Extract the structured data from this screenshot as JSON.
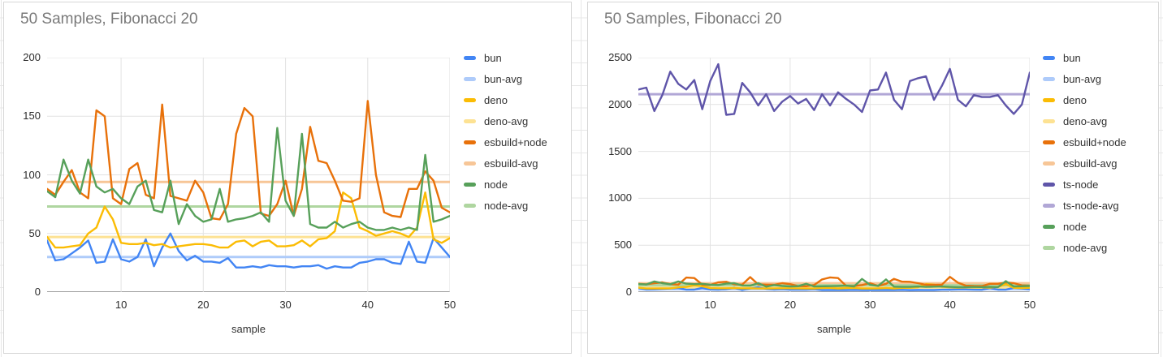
{
  "page": {
    "background_color": "#ffffff",
    "spreadsheet_grid_color": "#e7e7e7",
    "card_border_color": "#d7d7d7"
  },
  "style": {
    "title_color": "#7a7a7a",
    "axis_tick_color": "#2b2b2b",
    "axis_title_color": "#333333",
    "gridline_color": "#e2e2e2",
    "zero_axis_color": "#9c9c9c",
    "legend_text_color": "#333333"
  },
  "chart_data": [
    {
      "type": "line",
      "title": "50 Samples, Fibonacci 20",
      "xlabel": "sample",
      "ylabel": "",
      "xlim": [
        1,
        50
      ],
      "ylim": [
        0,
        200
      ],
      "x_ticks": [
        10,
        20,
        30,
        40,
        50
      ],
      "y_ticks": [
        0,
        50,
        100,
        150,
        200
      ],
      "grid": true,
      "legend_position": "right",
      "series": [
        {
          "name": "bun",
          "color": "#4285F4",
          "values": [
            44,
            27,
            28,
            33,
            38,
            44,
            25,
            26,
            45,
            28,
            26,
            30,
            45,
            22,
            38,
            50,
            35,
            27,
            31,
            26,
            26,
            25,
            29,
            21,
            21,
            22,
            21,
            23,
            22,
            22,
            21,
            22,
            22,
            23,
            20,
            22,
            21,
            21,
            25,
            26,
            28,
            28,
            25,
            24,
            43,
            26,
            25,
            46,
            38,
            30
          ]
        },
        {
          "name": "bun-avg",
          "color": "#AECBFA",
          "avg": 30
        },
        {
          "name": "deno",
          "color": "#FBBC04",
          "values": [
            47,
            38,
            38,
            39,
            40,
            50,
            55,
            73,
            62,
            42,
            41,
            41,
            42,
            40,
            41,
            38,
            39,
            40,
            41,
            41,
            40,
            38,
            38,
            43,
            44,
            39,
            43,
            44,
            39,
            39,
            40,
            44,
            39,
            45,
            46,
            52,
            85,
            80,
            55,
            52,
            48,
            50,
            52,
            50,
            47,
            55,
            85,
            45,
            42,
            46
          ]
        },
        {
          "name": "deno-avg",
          "color": "#FDE293",
          "avg": 47
        },
        {
          "name": "esbuild+node",
          "color": "#E8710A",
          "values": [
            88,
            83,
            94,
            104,
            85,
            80,
            155,
            150,
            80,
            75,
            105,
            110,
            83,
            80,
            160,
            82,
            80,
            78,
            95,
            85,
            63,
            62,
            75,
            135,
            157,
            150,
            67,
            65,
            75,
            95,
            65,
            88,
            141,
            112,
            110,
            95,
            78,
            77,
            80,
            163,
            100,
            68,
            65,
            64,
            88,
            88,
            103,
            95,
            72,
            68
          ]
        },
        {
          "name": "esbuild-avg",
          "color": "#F7C697",
          "avg": 94
        },
        {
          "name": "node",
          "color": "#57A05A",
          "values": [
            86,
            81,
            113,
            95,
            84,
            113,
            90,
            85,
            88,
            80,
            75,
            90,
            95,
            70,
            68,
            95,
            58,
            75,
            65,
            60,
            62,
            88,
            60,
            62,
            63,
            65,
            68,
            60,
            140,
            78,
            65,
            135,
            58,
            55,
            55,
            60,
            55,
            58,
            60,
            55,
            53,
            53,
            55,
            53,
            55,
            53,
            117,
            60,
            62,
            65
          ]
        },
        {
          "name": "node-avg",
          "color": "#AFD6A0",
          "avg": 73
        }
      ]
    },
    {
      "type": "line",
      "title": "50 Samples, Fibonacci 20",
      "xlabel": "sample",
      "ylabel": "",
      "xlim": [
        1,
        50
      ],
      "ylim": [
        0,
        2500
      ],
      "x_ticks": [
        10,
        20,
        30,
        40,
        50
      ],
      "y_ticks": [
        0,
        500,
        1000,
        1500,
        2000,
        2500
      ],
      "grid": true,
      "legend_position": "right",
      "series": [
        {
          "name": "bun",
          "color": "#4285F4",
          "values": [
            44,
            27,
            28,
            33,
            38,
            44,
            25,
            26,
            45,
            28,
            26,
            30,
            45,
            22,
            38,
            50,
            35,
            27,
            31,
            26,
            26,
            25,
            29,
            21,
            21,
            22,
            21,
            23,
            22,
            22,
            21,
            22,
            22,
            23,
            20,
            22,
            21,
            21,
            25,
            26,
            28,
            28,
            25,
            24,
            43,
            26,
            25,
            46,
            38,
            30
          ]
        },
        {
          "name": "bun-avg",
          "color": "#AECBFA",
          "avg": 30
        },
        {
          "name": "deno",
          "color": "#FBBC04",
          "values": [
            47,
            38,
            38,
            39,
            40,
            50,
            55,
            73,
            62,
            42,
            41,
            41,
            42,
            40,
            41,
            38,
            39,
            40,
            41,
            41,
            40,
            38,
            38,
            43,
            44,
            39,
            43,
            44,
            39,
            39,
            40,
            44,
            39,
            45,
            46,
            52,
            85,
            80,
            55,
            52,
            48,
            50,
            52,
            50,
            47,
            55,
            85,
            45,
            42,
            46
          ]
        },
        {
          "name": "deno-avg",
          "color": "#FDE293",
          "avg": 47
        },
        {
          "name": "esbuild+node",
          "color": "#E8710A",
          "values": [
            88,
            83,
            94,
            104,
            85,
            80,
            155,
            150,
            80,
            75,
            105,
            110,
            83,
            80,
            160,
            82,
            80,
            78,
            95,
            85,
            63,
            62,
            75,
            135,
            157,
            150,
            67,
            65,
            75,
            95,
            65,
            88,
            141,
            112,
            110,
            95,
            78,
            77,
            80,
            163,
            100,
            68,
            65,
            64,
            88,
            88,
            103,
            95,
            72,
            68
          ]
        },
        {
          "name": "esbuild-avg",
          "color": "#F7C697",
          "avg": 94
        },
        {
          "name": "ts-node",
          "color": "#5F55A9",
          "values": [
            2160,
            2180,
            1930,
            2100,
            2350,
            2220,
            2160,
            2260,
            1950,
            2250,
            2430,
            1890,
            1900,
            2230,
            2130,
            1990,
            2110,
            1930,
            2030,
            2090,
            2010,
            2060,
            1940,
            2110,
            1990,
            2130,
            2060,
            2000,
            1920,
            2150,
            2160,
            2340,
            2050,
            1950,
            2250,
            2280,
            2300,
            2050,
            2200,
            2380,
            2050,
            1980,
            2100,
            2080,
            2080,
            2100,
            1990,
            1900,
            2000,
            2340
          ]
        },
        {
          "name": "ts-node-avg",
          "color": "#B1A7D6",
          "avg": 2110
        },
        {
          "name": "node",
          "color": "#57A05A",
          "values": [
            86,
            81,
            113,
            95,
            84,
            113,
            90,
            85,
            88,
            80,
            75,
            90,
            95,
            70,
            68,
            95,
            58,
            75,
            65,
            60,
            62,
            88,
            60,
            62,
            63,
            65,
            68,
            60,
            140,
            78,
            65,
            135,
            58,
            55,
            55,
            60,
            55,
            58,
            60,
            55,
            53,
            53,
            55,
            53,
            55,
            53,
            117,
            60,
            62,
            65
          ]
        },
        {
          "name": "node-avg",
          "color": "#AFD6A0",
          "avg": 73
        }
      ]
    }
  ]
}
